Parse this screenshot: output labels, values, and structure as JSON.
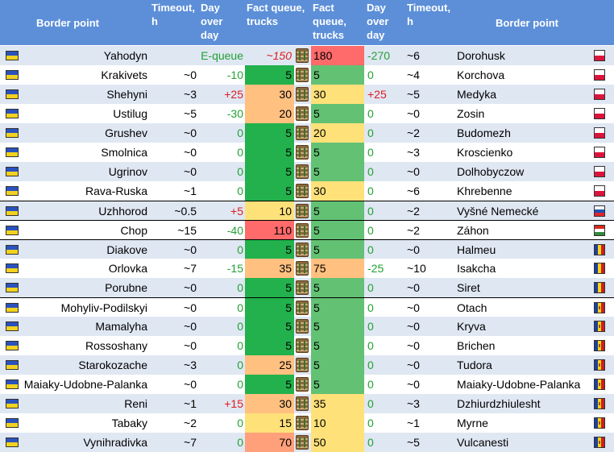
{
  "header": {
    "border_point_left": "Border point",
    "timeout_left": "Timeout, h",
    "day_over_day_left": "Day over day",
    "fact_queue_left": "Fact queue, trucks",
    "fact_queue_right": "Fact queue, trucks",
    "day_over_day_right": "Day over day",
    "timeout_right": "Timeout, h",
    "border_point_right": "Border point"
  },
  "colors": {
    "header_bg": "#5c8fd8",
    "row_alt": "#dfe7f3",
    "green": "#22b14c",
    "green_light": "#63c174",
    "yellow": "#ffe17a",
    "orange": "#ffc080",
    "red": "#ff6a6a",
    "salmon": "#ffa07a",
    "increase_text": "#e01c1c",
    "decrease_text": "#22a033"
  },
  "rows": [
    {
      "left_name": "Yahodyn",
      "left_timeout": "",
      "left_dod": "E-queue",
      "left_dod_style": "equeue",
      "left_fact": "~150",
      "left_fact_style": "italic-red",
      "left_fact_bg": "none",
      "right_fact": "180",
      "right_fact_bg": "red",
      "right_dod": "-270",
      "right_dod_style": "neg",
      "right_timeout": "~6",
      "right_name": "Dorohusk",
      "right_flag": "pl",
      "sep": false
    },
    {
      "left_name": "Krakivets",
      "left_timeout": "~0",
      "left_dod": "-10",
      "left_dod_style": "neg",
      "left_fact": "5",
      "left_fact_style": "",
      "left_fact_bg": "green",
      "right_fact": "5",
      "right_fact_bg": "green",
      "right_dod": "0",
      "right_dod_style": "zero",
      "right_timeout": "~4",
      "right_name": "Korchova",
      "right_flag": "pl",
      "sep": false
    },
    {
      "left_name": "Shehyni",
      "left_timeout": "~3",
      "left_dod": "+25",
      "left_dod_style": "pos",
      "left_fact": "30",
      "left_fact_style": "",
      "left_fact_bg": "orange",
      "right_fact": "30",
      "right_fact_bg": "yellow",
      "right_dod": "+25",
      "right_dod_style": "pos",
      "right_timeout": "~5",
      "right_name": "Medyka",
      "right_flag": "pl",
      "sep": false
    },
    {
      "left_name": "Ustilug",
      "left_timeout": "~5",
      "left_dod": "-30",
      "left_dod_style": "neg",
      "left_fact": "20",
      "left_fact_style": "",
      "left_fact_bg": "orange",
      "right_fact": "5",
      "right_fact_bg": "green",
      "right_dod": "0",
      "right_dod_style": "zero",
      "right_timeout": "~0",
      "right_name": "Zosin",
      "right_flag": "pl",
      "sep": false
    },
    {
      "left_name": "Grushev",
      "left_timeout": "~0",
      "left_dod": "0",
      "left_dod_style": "zero",
      "left_fact": "5",
      "left_fact_style": "",
      "left_fact_bg": "green",
      "right_fact": "20",
      "right_fact_bg": "yellow",
      "right_dod": "0",
      "right_dod_style": "zero",
      "right_timeout": "~2",
      "right_name": "Budomezh",
      "right_flag": "pl",
      "sep": false
    },
    {
      "left_name": "Smolnica",
      "left_timeout": "~0",
      "left_dod": "0",
      "left_dod_style": "zero",
      "left_fact": "5",
      "left_fact_style": "",
      "left_fact_bg": "green",
      "right_fact": "5",
      "right_fact_bg": "green",
      "right_dod": "0",
      "right_dod_style": "zero",
      "right_timeout": "~3",
      "right_name": "Kroscienko",
      "right_flag": "pl",
      "sep": false
    },
    {
      "left_name": "Ugrinov",
      "left_timeout": "~0",
      "left_dod": "0",
      "left_dod_style": "zero",
      "left_fact": "5",
      "left_fact_style": "",
      "left_fact_bg": "green",
      "right_fact": "5",
      "right_fact_bg": "green",
      "right_dod": "0",
      "right_dod_style": "zero",
      "right_timeout": "~0",
      "right_name": "Dolhobyczow",
      "right_flag": "pl",
      "sep": false
    },
    {
      "left_name": "Rava-Ruska",
      "left_timeout": "~1",
      "left_dod": "0",
      "left_dod_style": "zero",
      "left_fact": "5",
      "left_fact_style": "",
      "left_fact_bg": "green",
      "right_fact": "30",
      "right_fact_bg": "yellow",
      "right_dod": "0",
      "right_dod_style": "zero",
      "right_timeout": "~6",
      "right_name": "Khrebenne",
      "right_flag": "pl",
      "sep": false
    },
    {
      "left_name": "Uzhhorod",
      "left_timeout": "~0.5",
      "left_dod": "+5",
      "left_dod_style": "pos",
      "left_fact": "10",
      "left_fact_style": "",
      "left_fact_bg": "yellow",
      "right_fact": "5",
      "right_fact_bg": "green",
      "right_dod": "0",
      "right_dod_style": "zero",
      "right_timeout": "~2",
      "right_name": "Vyšné Nemecké",
      "right_flag": "sk",
      "sep": true
    },
    {
      "left_name": "Chop",
      "left_timeout": "~15",
      "left_dod": "-40",
      "left_dod_style": "neg",
      "left_fact": "110",
      "left_fact_style": "",
      "left_fact_bg": "red",
      "right_fact": "5",
      "right_fact_bg": "green",
      "right_dod": "0",
      "right_dod_style": "zero",
      "right_timeout": "~2",
      "right_name": "Záhon",
      "right_flag": "hu",
      "sep": true
    },
    {
      "left_name": "Diakove",
      "left_timeout": "~0",
      "left_dod": "0",
      "left_dod_style": "zero",
      "left_fact": "5",
      "left_fact_style": "",
      "left_fact_bg": "green",
      "right_fact": "5",
      "right_fact_bg": "green",
      "right_dod": "0",
      "right_dod_style": "zero",
      "right_timeout": "~0",
      "right_name": "Halmeu",
      "right_flag": "ro",
      "sep": true
    },
    {
      "left_name": "Orlovka",
      "left_timeout": "~7",
      "left_dod": "-15",
      "left_dod_style": "neg",
      "left_fact": "35",
      "left_fact_style": "",
      "left_fact_bg": "orange",
      "right_fact": "75",
      "right_fact_bg": "orange",
      "right_dod": "-25",
      "right_dod_style": "neg",
      "right_timeout": "~10",
      "right_name": "Isakcha",
      "right_flag": "ro",
      "sep": false
    },
    {
      "left_name": "Porubne",
      "left_timeout": "~0",
      "left_dod": "0",
      "left_dod_style": "zero",
      "left_fact": "5",
      "left_fact_style": "",
      "left_fact_bg": "green",
      "right_fact": "5",
      "right_fact_bg": "green",
      "right_dod": "0",
      "right_dod_style": "zero",
      "right_timeout": "~0",
      "right_name": "Siret",
      "right_flag": "ro",
      "sep": false
    },
    {
      "left_name": "Mohyliv-Podilskyi",
      "left_timeout": "~0",
      "left_dod": "0",
      "left_dod_style": "zero",
      "left_fact": "5",
      "left_fact_style": "",
      "left_fact_bg": "green",
      "right_fact": "5",
      "right_fact_bg": "green",
      "right_dod": "0",
      "right_dod_style": "zero",
      "right_timeout": "~0",
      "right_name": "Otach",
      "right_flag": "md",
      "sep": true
    },
    {
      "left_name": "Mamalyha",
      "left_timeout": "~0",
      "left_dod": "0",
      "left_dod_style": "zero",
      "left_fact": "5",
      "left_fact_style": "",
      "left_fact_bg": "green",
      "right_fact": "5",
      "right_fact_bg": "green",
      "right_dod": "0",
      "right_dod_style": "zero",
      "right_timeout": "~0",
      "right_name": "Kryva",
      "right_flag": "md",
      "sep": false
    },
    {
      "left_name": "Rossoshany",
      "left_timeout": "~0",
      "left_dod": "0",
      "left_dod_style": "zero",
      "left_fact": "5",
      "left_fact_style": "",
      "left_fact_bg": "green",
      "right_fact": "5",
      "right_fact_bg": "green",
      "right_dod": "0",
      "right_dod_style": "zero",
      "right_timeout": "~0",
      "right_name": "Brichen",
      "right_flag": "md",
      "sep": false
    },
    {
      "left_name": "Starokozache",
      "left_timeout": "~3",
      "left_dod": "0",
      "left_dod_style": "zero",
      "left_fact": "25",
      "left_fact_style": "",
      "left_fact_bg": "orange",
      "right_fact": "5",
      "right_fact_bg": "green",
      "right_dod": "0",
      "right_dod_style": "zero",
      "right_timeout": "~0",
      "right_name": "Tudora",
      "right_flag": "md",
      "sep": false
    },
    {
      "left_name": "Maiaky-Udobne-Palanka",
      "left_timeout": "~0",
      "left_dod": "0",
      "left_dod_style": "zero",
      "left_fact": "5",
      "left_fact_style": "",
      "left_fact_bg": "green",
      "right_fact": "5",
      "right_fact_bg": "green",
      "right_dod": "0",
      "right_dod_style": "zero",
      "right_timeout": "~0",
      "right_name": "Maiaky-Udobne-Palanka",
      "right_flag": "md",
      "sep": false
    },
    {
      "left_name": "Reni",
      "left_timeout": "~1",
      "left_dod": "+15",
      "left_dod_style": "pos",
      "left_fact": "30",
      "left_fact_style": "",
      "left_fact_bg": "orange",
      "right_fact": "35",
      "right_fact_bg": "yellow",
      "right_dod": "0",
      "right_dod_style": "zero",
      "right_timeout": "~3",
      "right_name": "Dzhiurdzhiulesht",
      "right_flag": "md",
      "sep": false
    },
    {
      "left_name": "Tabaky",
      "left_timeout": "~2",
      "left_dod": "0",
      "left_dod_style": "zero",
      "left_fact": "15",
      "left_fact_style": "",
      "left_fact_bg": "yellow",
      "right_fact": "10",
      "right_fact_bg": "yellow",
      "right_dod": "0",
      "right_dod_style": "zero",
      "right_timeout": "~1",
      "right_name": "Myrne",
      "right_flag": "md",
      "sep": false
    },
    {
      "left_name": "Vynihradivka",
      "left_timeout": "~7",
      "left_dod": "0",
      "left_dod_style": "zero",
      "left_fact": "70",
      "left_fact_style": "",
      "left_fact_bg": "salmon",
      "right_fact": "50",
      "right_fact_bg": "yellow",
      "right_dod": "0",
      "right_dod_style": "zero",
      "right_timeout": "~5",
      "right_name": "Vulcanesti",
      "right_flag": "md",
      "sep": false
    }
  ]
}
